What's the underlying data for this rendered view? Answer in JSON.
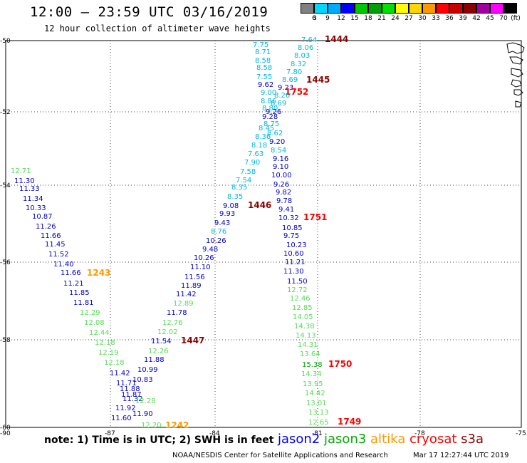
{
  "header": {
    "title": "12:00 – 23:59 UTC 03/16/2019",
    "subtitle": "12 hour collection of altimeter wave heights"
  },
  "legend": {
    "unit_label": "(ft)",
    "bins": [
      {
        "label": "3",
        "color": "#808080"
      },
      {
        "label": "6",
        "color": "#00d7ff"
      },
      {
        "label": "9",
        "color": "#00aaff"
      },
      {
        "label": "12",
        "color": "#0000ff"
      },
      {
        "label": "15",
        "color": "#00c800"
      },
      {
        "label": "18",
        "color": "#00a000"
      },
      {
        "label": "21",
        "color": "#00e000"
      },
      {
        "label": "24",
        "color": "#ffff00"
      },
      {
        "label": "27",
        "color": "#ffd700"
      },
      {
        "label": "30",
        "color": "#ff9900"
      },
      {
        "label": "33",
        "color": "#ff0000"
      },
      {
        "label": "36",
        "color": "#c80000"
      },
      {
        "label": "39",
        "color": "#8b0000"
      },
      {
        "label": "42",
        "color": "#a000a0"
      },
      {
        "label": "45",
        "color": "#ff00ff"
      },
      {
        "label": "70",
        "color": "#000000"
      }
    ]
  },
  "map": {
    "lat_labels": [
      "-50",
      "-52",
      "-54",
      "-56",
      "-58",
      "-60"
    ],
    "lon_labels": [
      "-90",
      "-87",
      "-84",
      "-81",
      "-78",
      "-75"
    ],
    "colors": {
      "jason2": "#0000cc",
      "jason3": "#00aa00",
      "jason3_light": "#55dd55",
      "altika": "#ff9900",
      "cryosat": "#ff0000",
      "s3a": "#8b0000",
      "cyan": "#00b8e0"
    },
    "track_labels": [
      {
        "text": "12.71",
        "c": "jason3_light"
      },
      {
        "text": "11.30",
        "c": "jason2"
      },
      {
        "text": "11.33",
        "c": "jason2"
      },
      {
        "text": "11.34",
        "c": "jason2"
      },
      {
        "text": "10.33",
        "c": "jason2"
      },
      {
        "text": "10.87",
        "c": "jason2"
      },
      {
        "text": "11.26",
        "c": "jason2"
      },
      {
        "text": "11.66",
        "c": "jason2"
      },
      {
        "text": "11.45",
        "c": "jason2"
      },
      {
        "text": "11.52",
        "c": "jason2"
      },
      {
        "text": "11.40",
        "c": "jason2"
      },
      {
        "text": "11.66",
        "c": "jason2"
      },
      {
        "text": "1243",
        "c": "altika"
      },
      {
        "text": "11.21",
        "c": "jason2"
      },
      {
        "text": "11.85",
        "c": "jason2"
      },
      {
        "text": "11.81",
        "c": "jason2"
      },
      {
        "text": "12.29",
        "c": "jason3_light"
      },
      {
        "text": "12.08",
        "c": "jason3_light"
      },
      {
        "text": "12.44",
        "c": "jason3_light"
      },
      {
        "text": "12.18",
        "c": "jason3_light"
      },
      {
        "text": "12.19",
        "c": "jason3_light"
      },
      {
        "text": "12.18",
        "c": "jason3_light"
      },
      {
        "text": "11.42",
        "c": "jason2"
      },
      {
        "text": "11.71",
        "c": "jason2"
      },
      {
        "text": "11.88",
        "c": "jason2"
      },
      {
        "text": "11.87",
        "c": "jason2"
      },
      {
        "text": "11.32",
        "c": "jason2"
      },
      {
        "text": "11.92",
        "c": "jason2"
      },
      {
        "text": "11.60",
        "c": "jason2"
      },
      {
        "text": "12.28",
        "c": "jason3_light"
      },
      {
        "text": "11.90",
        "c": "jason2"
      },
      {
        "text": "12.20",
        "c": "jason3_light"
      },
      {
        "text": "1242",
        "c": "altika"
      },
      {
        "text": "10.99",
        "c": "jason2"
      },
      {
        "text": "10.83",
        "c": "jason2"
      },
      {
        "text": "11.88",
        "c": "jason2"
      },
      {
        "text": "12.26",
        "c": "jason3_light"
      },
      {
        "text": "11.54",
        "c": "jason2"
      },
      {
        "text": "1447",
        "c": "s3a"
      },
      {
        "text": "12.02",
        "c": "jason3_light"
      },
      {
        "text": "12.76",
        "c": "jason3_light"
      },
      {
        "text": "11.78",
        "c": "jason2"
      },
      {
        "text": "12.89",
        "c": "jason3_light"
      },
      {
        "text": "11.42",
        "c": "jason2"
      },
      {
        "text": "11.89",
        "c": "jason2"
      },
      {
        "text": "11.56",
        "c": "jason2"
      },
      {
        "text": "11.10",
        "c": "jason2"
      },
      {
        "text": "10.26",
        "c": "jason2"
      },
      {
        "text": "9.48",
        "c": "jason2"
      },
      {
        "text": "10.26",
        "c": "jason2"
      },
      {
        "text": "8.76",
        "c": "cyan"
      },
      {
        "text": "9.43",
        "c": "jason2"
      },
      {
        "text": "9.93",
        "c": "jason2"
      },
      {
        "text": "9.08",
        "c": "jason2"
      },
      {
        "text": "1446",
        "c": "s3a"
      },
      {
        "text": "8.35",
        "c": "cyan"
      },
      {
        "text": "8.35",
        "c": "cyan"
      },
      {
        "text": "7.54",
        "c": "cyan"
      },
      {
        "text": "7.58",
        "c": "cyan"
      },
      {
        "text": "7.90",
        "c": "cyan"
      },
      {
        "text": "7.63",
        "c": "cyan"
      },
      {
        "text": "8.18",
        "c": "cyan"
      },
      {
        "text": "8.36",
        "c": "cyan"
      },
      {
        "text": "8.45",
        "c": "cyan"
      },
      {
        "text": "8.75",
        "c": "cyan"
      },
      {
        "text": "9.28",
        "c": "jason2"
      },
      {
        "text": "8.80",
        "c": "cyan"
      },
      {
        "text": "8.86",
        "c": "cyan"
      },
      {
        "text": "9.00",
        "c": "cyan"
      },
      {
        "text": "9.62",
        "c": "jason2"
      },
      {
        "text": "7.55",
        "c": "cyan"
      },
      {
        "text": "8.58",
        "c": "cyan"
      },
      {
        "text": "8.58",
        "c": "cyan"
      },
      {
        "text": "8.71",
        "c": "cyan"
      },
      {
        "text": "7.75",
        "c": "cyan"
      },
      {
        "text": "7.64",
        "c": "cyan"
      },
      {
        "text": "1444",
        "c": "s3a"
      },
      {
        "text": "8.06",
        "c": "cyan"
      },
      {
        "text": "8.03",
        "c": "cyan"
      },
      {
        "text": "8.32",
        "c": "cyan"
      },
      {
        "text": "7.80",
        "c": "cyan"
      },
      {
        "text": "8.69",
        "c": "cyan"
      },
      {
        "text": "1445",
        "c": "s3a"
      },
      {
        "text": "9.23",
        "c": "jason2"
      },
      {
        "text": "1752",
        "c": "cryosat"
      },
      {
        "text": "8.26",
        "c": "cyan"
      },
      {
        "text": "8.69",
        "c": "cyan"
      },
      {
        "text": "9.26",
        "c": "jason2"
      },
      {
        "text": "8.62",
        "c": "cyan"
      },
      {
        "text": "9.20",
        "c": "jason2"
      },
      {
        "text": "8.54",
        "c": "cyan"
      },
      {
        "text": "9.16",
        "c": "jason2"
      },
      {
        "text": "9.10",
        "c": "jason2"
      },
      {
        "text": "10.00",
        "c": "jason2"
      },
      {
        "text": "9.26",
        "c": "jason2"
      },
      {
        "text": "9.82",
        "c": "jason2"
      },
      {
        "text": "9.78",
        "c": "jason2"
      },
      {
        "text": "9.41",
        "c": "jason2"
      },
      {
        "text": "10.32",
        "c": "jason2"
      },
      {
        "text": "1751",
        "c": "cryosat"
      },
      {
        "text": "10.85",
        "c": "jason2"
      },
      {
        "text": "9.75",
        "c": "jason2"
      },
      {
        "text": "10.23",
        "c": "jason2"
      },
      {
        "text": "10.60",
        "c": "jason2"
      },
      {
        "text": "11.21",
        "c": "jason2"
      },
      {
        "text": "11.30",
        "c": "jason2"
      },
      {
        "text": "11.50",
        "c": "jason2"
      },
      {
        "text": "12.72",
        "c": "jason3_light"
      },
      {
        "text": "12.46",
        "c": "jason3_light"
      },
      {
        "text": "12.85",
        "c": "jason3_light"
      },
      {
        "text": "14.05",
        "c": "jason3_light"
      },
      {
        "text": "14.38",
        "c": "jason3_light"
      },
      {
        "text": "14.13",
        "c": "jason3_light"
      },
      {
        "text": "14.31",
        "c": "jason3_light"
      },
      {
        "text": "13.64",
        "c": "jason3_light"
      },
      {
        "text": "15.38",
        "c": "jason3"
      },
      {
        "text": "1750",
        "c": "cryosat"
      },
      {
        "text": "14.34",
        "c": "jason3_light"
      },
      {
        "text": "13.95",
        "c": "jason3_light"
      },
      {
        "text": "14.42",
        "c": "jason3_light"
      },
      {
        "text": "13.01",
        "c": "jason3_light"
      },
      {
        "text": "13.13",
        "c": "jason3_light"
      },
      {
        "text": "12.65",
        "c": "jason3_light"
      },
      {
        "text": "1749",
        "c": "cryosat"
      }
    ]
  },
  "footer": {
    "note": "note: 1) Time is in UTC; 2) SWH is in feet",
    "satellites": [
      {
        "name": "jason2",
        "color": "#0000ff"
      },
      {
        "name": "jason3",
        "color": "#00aa00"
      },
      {
        "name": "altika",
        "color": "#ff9900"
      },
      {
        "name": "cryosat",
        "color": "#ff0000"
      },
      {
        "name": "s3a",
        "color": "#8b0000"
      }
    ],
    "credit": "NOAA/NESDIS Center for Satellite Applications and Research",
    "timestamp": "Mar 17 12:27:44 UTC 2019"
  }
}
